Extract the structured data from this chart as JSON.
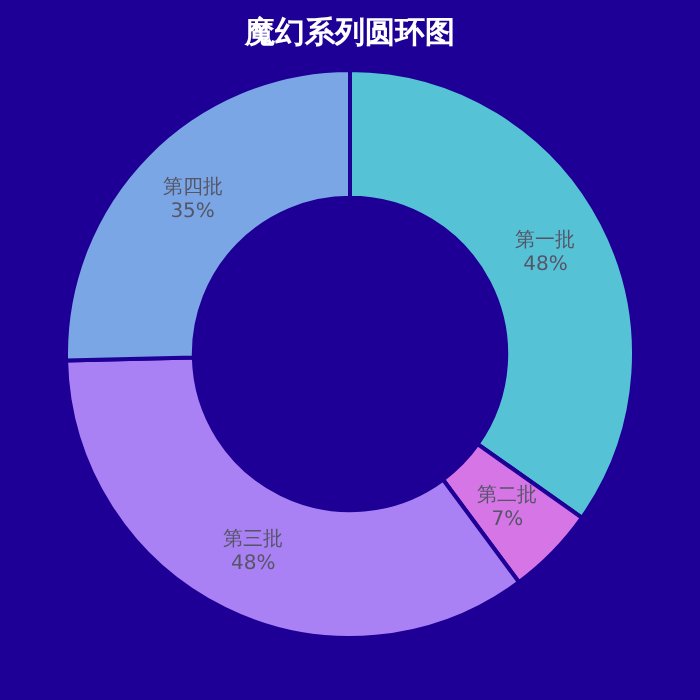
{
  "chart_data": {
    "type": "donut",
    "title": "魔幻系列圆环图",
    "categories": [
      "第一批",
      "第二批",
      "第三批",
      "第四批"
    ],
    "values": [
      48,
      7,
      48,
      35
    ],
    "value_labels": [
      "48%",
      "7%",
      "48%",
      "35%"
    ],
    "colors": [
      "#56c2d6",
      "#d675e6",
      "#aa80f5",
      "#7aa6e6"
    ],
    "legend": false
  }
}
